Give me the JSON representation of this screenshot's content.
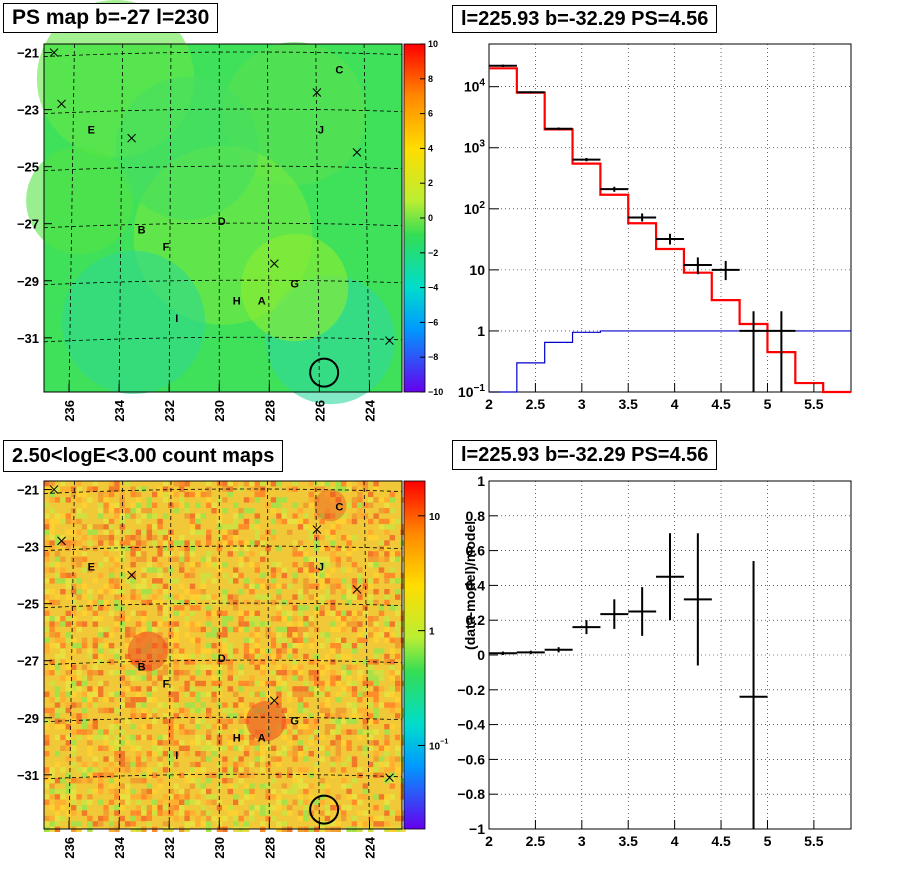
{
  "panels": {
    "tl_title": "PS map b=-27 l=230",
    "tr_title": "l=225.93 b=-32.29 PS=4.56",
    "bl_title": "2.50<logE<3.00 count maps",
    "br_title": "l=225.93 b=-32.29 PS=4.56"
  },
  "chart_data": [
    {
      "type": "heatmap",
      "title": "PS map b=-27 l=230",
      "x_ticks": [
        "236",
        "234",
        "232",
        "230",
        "228",
        "226",
        "224"
      ],
      "y_ticks": [
        "-21",
        "-23",
        "-25",
        "-27",
        "-29",
        "-31"
      ],
      "colorbar_ticks": [
        "10",
        "8",
        "6",
        "4",
        "2",
        "0",
        "-2",
        "-4",
        "-6",
        "-8",
        "-10"
      ],
      "zlim": [
        -10,
        10
      ],
      "source_labels": [
        {
          "label": "C",
          "l": 225.2,
          "b": -21.6
        },
        {
          "label": "E",
          "l": 235.1,
          "b": -23.7
        },
        {
          "label": "J",
          "l": 225.9,
          "b": -23.7
        },
        {
          "label": "B",
          "l": 233.1,
          "b": -27.2
        },
        {
          "label": "D",
          "l": 229.9,
          "b": -26.9
        },
        {
          "label": "F",
          "l": 232.1,
          "b": -27.8
        },
        {
          "label": "G",
          "l": 227.0,
          "b": -29.1
        },
        {
          "label": "H",
          "l": 229.3,
          "b": -29.7
        },
        {
          "label": "A",
          "l": 228.3,
          "b": -29.7
        },
        {
          "label": "I",
          "l": 231.6,
          "b": -30.3
        }
      ],
      "markers": [
        {
          "l": 236.6,
          "b": -21.0
        },
        {
          "l": 236.3,
          "b": -22.8
        },
        {
          "l": 233.5,
          "b": -24.0
        },
        {
          "l": 226.1,
          "b": -22.4
        },
        {
          "l": 224.5,
          "b": -24.5
        },
        {
          "l": 227.8,
          "b": -28.4
        },
        {
          "l": 223.2,
          "b": -31.1
        }
      ],
      "circle": {
        "l": 225.93,
        "b": -32.29
      }
    },
    {
      "type": "line",
      "title": "l=225.93 b=-32.29 PS=4.56",
      "log_y": true,
      "xlim": [
        2,
        5.9
      ],
      "ylim": [
        0.1,
        50000
      ],
      "x_ticks": [
        "2",
        "2.5",
        "3",
        "3.5",
        "4",
        "4.5",
        "5",
        "5.5"
      ],
      "y_ticks": [
        "10^-1",
        "1",
        "10",
        "10^2",
        "10^3",
        "10^4"
      ],
      "bin_edges": [
        2.0,
        2.3,
        2.6,
        2.9,
        3.2,
        3.5,
        3.8,
        4.1,
        4.4,
        4.7,
        5.0,
        5.3,
        5.6,
        5.9
      ],
      "series": [
        {
          "color": "#ff0000",
          "values": [
            20000,
            8000,
            2000,
            550,
            170,
            58,
            22,
            9,
            3.2,
            1.3,
            0.45,
            0.14,
            0.09
          ]
        },
        {
          "color": "#0000cc",
          "values": [
            0.09,
            0.3,
            0.65,
            0.95,
            1.0,
            1.0,
            1.0,
            1.0,
            1.0,
            1.0,
            1.0,
            1.0,
            1.0
          ]
        }
      ],
      "data_points": [
        {
          "x": 2.15,
          "y": 22000,
          "ylo": 21000,
          "yhi": 23000
        },
        {
          "x": 2.45,
          "y": 8100,
          "ylo": 7800,
          "yhi": 8400
        },
        {
          "x": 2.75,
          "y": 2050,
          "ylo": 1950,
          "yhi": 2150
        },
        {
          "x": 3.05,
          "y": 640,
          "ylo": 600,
          "yhi": 680
        },
        {
          "x": 3.35,
          "y": 210,
          "ylo": 190,
          "yhi": 230
        },
        {
          "x": 3.65,
          "y": 72,
          "ylo": 62,
          "yhi": 84
        },
        {
          "x": 3.95,
          "y": 32,
          "ylo": 26,
          "yhi": 39
        },
        {
          "x": 4.25,
          "y": 12,
          "ylo": 8.5,
          "yhi": 16
        },
        {
          "x": 4.55,
          "y": 10,
          "ylo": 6.8,
          "yhi": 14
        },
        {
          "x": 4.85,
          "y": 1.0,
          "ylo": 0.1,
          "yhi": 2.1
        },
        {
          "x": 5.15,
          "y": 1.0,
          "ylo": 0.1,
          "yhi": 2.1
        }
      ]
    },
    {
      "type": "heatmap",
      "title": "2.50<logE<3.00 count maps",
      "x_ticks": [
        "236",
        "234",
        "232",
        "230",
        "228",
        "226",
        "224"
      ],
      "y_ticks": [
        "-21",
        "-23",
        "-25",
        "-27",
        "-29",
        "-31"
      ],
      "colorbar_ticks": [
        "10",
        "1",
        "10^-1"
      ],
      "log_z": true
    },
    {
      "type": "scatter",
      "title": "l=225.93 b=-32.29 PS=4.56",
      "ylabel": "(data-model)/model",
      "xlim": [
        2,
        5.9
      ],
      "ylim": [
        -1,
        1
      ],
      "x_ticks": [
        "2",
        "2.5",
        "3",
        "3.5",
        "4",
        "4.5",
        "5",
        "5.5"
      ],
      "y_ticks": [
        "1",
        "0.8",
        "0.6",
        "0.4",
        "0.2",
        "0",
        "-0.2",
        "-0.4",
        "-0.6",
        "-0.8",
        "-1"
      ],
      "points": [
        {
          "x": 2.15,
          "y": 0.01,
          "ylo": 0.0,
          "yhi": 0.02
        },
        {
          "x": 2.45,
          "y": 0.015,
          "ylo": 0.005,
          "yhi": 0.025
        },
        {
          "x": 2.75,
          "y": 0.03,
          "ylo": 0.015,
          "yhi": 0.045
        },
        {
          "x": 3.05,
          "y": 0.16,
          "ylo": 0.12,
          "yhi": 0.2
        },
        {
          "x": 3.35,
          "y": 0.235,
          "ylo": 0.15,
          "yhi": 0.32
        },
        {
          "x": 3.65,
          "y": 0.25,
          "ylo": 0.11,
          "yhi": 0.39
        },
        {
          "x": 3.95,
          "y": 0.45,
          "ylo": 0.2,
          "yhi": 0.7
        },
        {
          "x": 4.25,
          "y": 0.32,
          "ylo": -0.06,
          "yhi": 0.7
        },
        {
          "x": 4.85,
          "y": -0.24,
          "ylo": -1.0,
          "yhi": 0.54
        }
      ]
    }
  ]
}
